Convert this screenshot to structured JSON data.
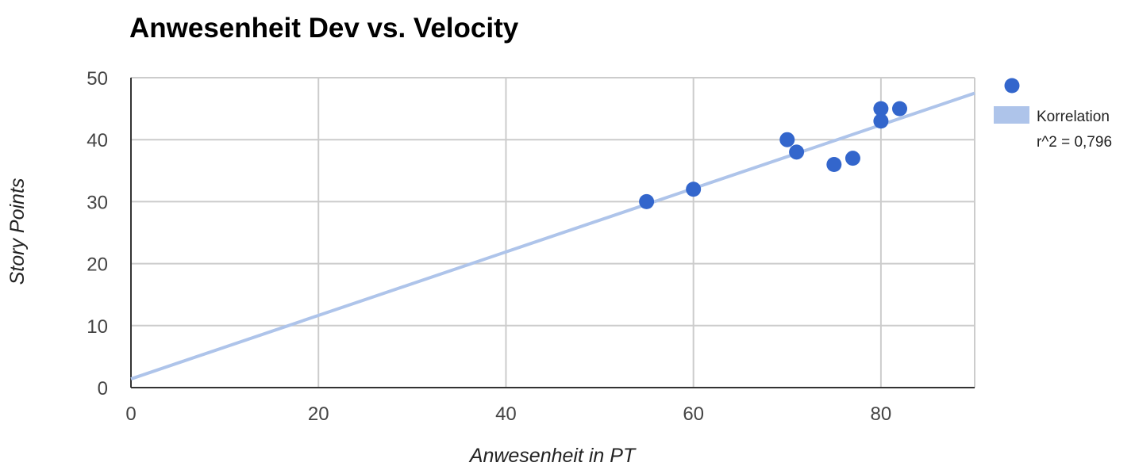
{
  "chart_data": {
    "type": "scatter",
    "title": "Anwesenheit Dev vs. Velocity",
    "xlabel": "Anwesenheit in PT",
    "ylabel": "Story Points",
    "xlim": [
      0,
      90
    ],
    "ylim": [
      0,
      50
    ],
    "x_ticks": [
      0,
      20,
      40,
      60,
      80
    ],
    "y_ticks": [
      0,
      10,
      20,
      30,
      40,
      50
    ],
    "grid": true,
    "legend_position": "right",
    "series": [
      {
        "type": "scatter",
        "color": "#3366cc",
        "points": [
          {
            "x": 55,
            "y": 30
          },
          {
            "x": 60,
            "y": 32
          },
          {
            "x": 70,
            "y": 40
          },
          {
            "x": 71,
            "y": 38
          },
          {
            "x": 75,
            "y": 36
          },
          {
            "x": 77,
            "y": 37
          },
          {
            "x": 80,
            "y": 45
          },
          {
            "x": 80,
            "y": 43
          },
          {
            "x": 82,
            "y": 45
          }
        ]
      },
      {
        "type": "trendline",
        "name": "Korrelation",
        "r2_label": "r^2 = 0,796",
        "color": "#aec4ea",
        "start": {
          "x": 0,
          "y": 1.4
        },
        "end": {
          "x": 90,
          "y": 47.5
        }
      }
    ]
  }
}
